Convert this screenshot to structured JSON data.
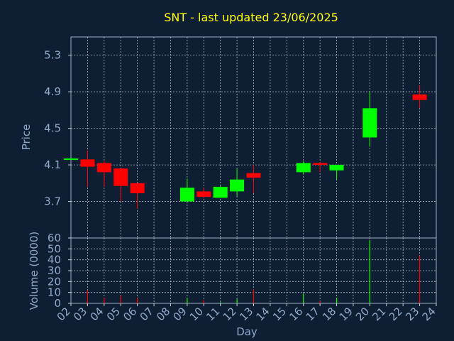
{
  "title": "SNT - last updated 23/06/2025",
  "colors": {
    "up": "#00ff00",
    "down": "#ff0000",
    "background": "#0f1f33",
    "text": "#8fa9c9",
    "title": "#ffff00"
  },
  "chart_data": [
    {
      "type": "candlestick",
      "ylabel": "Price",
      "ylim": [
        3.3,
        5.5
      ],
      "yticks": [
        3.7,
        4.1,
        4.5,
        4.9,
        5.3
      ],
      "ytick_labels": [
        "3.7",
        "4.1",
        "4.5",
        "4.9",
        "5.3"
      ],
      "grid": true,
      "candles": [
        {
          "day": 2,
          "open": 4.17,
          "high": 4.17,
          "low": 4.17,
          "close": 4.17
        },
        {
          "day": 3,
          "open": 4.16,
          "high": 4.26,
          "low": 3.86,
          "close": 4.08
        },
        {
          "day": 4,
          "open": 4.12,
          "high": 4.14,
          "low": 3.86,
          "close": 4.02
        },
        {
          "day": 5,
          "open": 4.06,
          "high": 4.06,
          "low": 3.7,
          "close": 3.87
        },
        {
          "day": 6,
          "open": 3.9,
          "high": 3.9,
          "low": 3.62,
          "close": 3.79
        },
        {
          "day": 9,
          "open": 3.7,
          "high": 3.95,
          "low": 3.7,
          "close": 3.85
        },
        {
          "day": 10,
          "open": 3.81,
          "high": 3.85,
          "low": 3.74,
          "close": 3.75
        },
        {
          "day": 11,
          "open": 3.74,
          "high": 3.87,
          "low": 3.74,
          "close": 3.86
        },
        {
          "day": 12,
          "open": 3.81,
          "high": 4.06,
          "low": 3.76,
          "close": 3.94
        },
        {
          "day": 13,
          "open": 4.01,
          "high": 4.1,
          "low": 3.79,
          "close": 3.96
        },
        {
          "day": 16,
          "open": 4.02,
          "high": 4.14,
          "low": 4.0,
          "close": 4.12
        },
        {
          "day": 17,
          "open": 4.12,
          "high": 4.13,
          "low": 4.02,
          "close": 4.1
        },
        {
          "day": 18,
          "open": 4.04,
          "high": 4.1,
          "low": 3.94,
          "close": 4.1
        },
        {
          "day": 20,
          "open": 4.4,
          "high": 4.9,
          "low": 4.3,
          "close": 4.72
        },
        {
          "day": 23,
          "open": 4.87,
          "high": 4.97,
          "low": 4.72,
          "close": 4.81
        }
      ]
    },
    {
      "type": "bar",
      "ylabel": "Volume (0000)",
      "ylim": [
        0,
        60
      ],
      "yticks": [
        0,
        10,
        20,
        30,
        40,
        50,
        60
      ],
      "ytick_labels": [
        "0",
        "10",
        "20",
        "30",
        "40",
        "50",
        "60"
      ],
      "xlabel": "Day",
      "xlim": [
        2,
        24
      ],
      "xticks": [
        2,
        3,
        4,
        5,
        6,
        7,
        8,
        9,
        10,
        11,
        12,
        13,
        14,
        15,
        16,
        17,
        18,
        19,
        20,
        21,
        22,
        23,
        24
      ],
      "xtick_labels": [
        "02",
        "03",
        "04",
        "05",
        "06",
        "07",
        "08",
        "09",
        "10",
        "11",
        "12",
        "13",
        "14",
        "15",
        "16",
        "17",
        "18",
        "19",
        "20",
        "21",
        "22",
        "23",
        "24"
      ],
      "grid": true,
      "bars": [
        {
          "day": 2,
          "value": 0,
          "dir": "down"
        },
        {
          "day": 3,
          "value": 12,
          "dir": "down"
        },
        {
          "day": 4,
          "value": 5,
          "dir": "down"
        },
        {
          "day": 5,
          "value": 7,
          "dir": "down"
        },
        {
          "day": 6,
          "value": 5,
          "dir": "down"
        },
        {
          "day": 9,
          "value": 5,
          "dir": "up"
        },
        {
          "day": 10,
          "value": 3,
          "dir": "down"
        },
        {
          "day": 11,
          "value": 1,
          "dir": "up"
        },
        {
          "day": 12,
          "value": 4,
          "dir": "up"
        },
        {
          "day": 13,
          "value": 13,
          "dir": "down"
        },
        {
          "day": 16,
          "value": 9,
          "dir": "up"
        },
        {
          "day": 17,
          "value": 2,
          "dir": "down"
        },
        {
          "day": 18,
          "value": 5,
          "dir": "up"
        },
        {
          "day": 20,
          "value": 58,
          "dir": "up"
        },
        {
          "day": 23,
          "value": 44,
          "dir": "down"
        }
      ]
    }
  ]
}
